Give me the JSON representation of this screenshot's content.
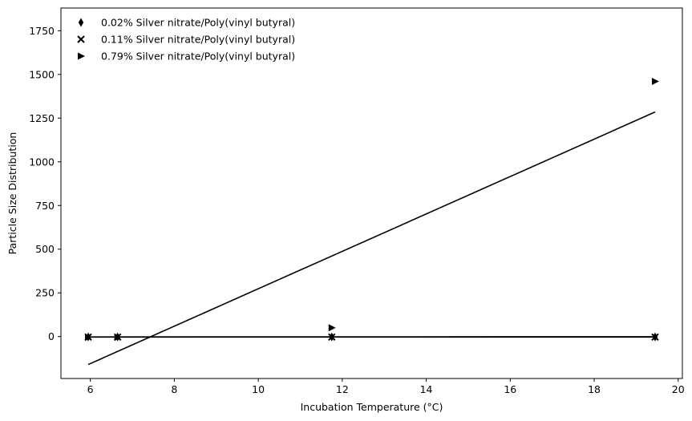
{
  "chart_data": {
    "type": "scatter",
    "title": "",
    "xlabel": "Incubation Temperature (°C)",
    "ylabel": "Particle Size Distribution",
    "xlim": [
      5.3,
      20.1
    ],
    "ylim": [
      -240,
      1880
    ],
    "xticks": [
      6,
      8,
      10,
      12,
      14,
      16,
      18,
      20
    ],
    "yticks": [
      0,
      250,
      500,
      750,
      1000,
      1250,
      1500,
      1750
    ],
    "grid": false,
    "legend_position": "top-left",
    "series": [
      {
        "name": "0.02% Silver nitrate/Poly(vinyl butyral)",
        "marker": "thin-diamond",
        "color": "#000000",
        "points": [
          [
            5.95,
            -2
          ],
          [
            6.65,
            -2
          ],
          [
            11.75,
            -2
          ],
          [
            19.45,
            -2
          ]
        ],
        "fit": [
          [
            5.95,
            -2
          ],
          [
            19.45,
            -1
          ]
        ]
      },
      {
        "name": "0.11% Silver nitrate/Poly(vinyl butyral)",
        "marker": "x",
        "color": "#000000",
        "points": [
          [
            5.95,
            -3
          ],
          [
            6.65,
            -3
          ],
          [
            11.75,
            -3
          ],
          [
            19.45,
            -3
          ]
        ],
        "fit": [
          [
            5.95,
            -3
          ],
          [
            19.45,
            -3
          ]
        ]
      },
      {
        "name": "0.79% Silver nitrate/Poly(vinyl butyral)",
        "marker": "triangle-right",
        "color": "#000000",
        "points": [
          [
            5.95,
            -4
          ],
          [
            6.65,
            -4
          ],
          [
            11.75,
            50
          ],
          [
            19.45,
            1460
          ]
        ],
        "fit": [
          [
            5.95,
            -160
          ],
          [
            19.45,
            1285
          ]
        ]
      }
    ]
  }
}
